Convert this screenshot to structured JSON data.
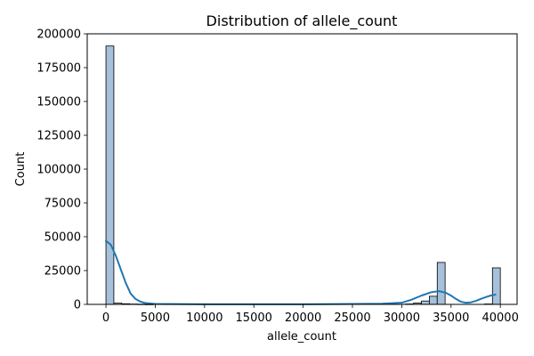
{
  "chart_data": {
    "type": "histogram",
    "title": "Distribution of allele_count",
    "xlabel": "allele_count",
    "ylabel": "Count",
    "xlim": [
      -1900,
      41700
    ],
    "ylim": [
      0,
      200000
    ],
    "x_ticks": [
      0,
      5000,
      10000,
      15000,
      20000,
      25000,
      30000,
      35000,
      40000
    ],
    "y_ticks": [
      0,
      25000,
      50000,
      75000,
      100000,
      125000,
      150000,
      175000,
      200000
    ],
    "grid": false,
    "bin_width": 800,
    "bins": [
      {
        "x0": 0,
        "x1": 800,
        "count": 191000
      },
      {
        "x0": 800,
        "x1": 1600,
        "count": 900
      },
      {
        "x0": 1600,
        "x1": 2400,
        "count": 450
      },
      {
        "x0": 2400,
        "x1": 3200,
        "count": 250
      },
      {
        "x0": 3200,
        "x1": 4000,
        "count": 150
      },
      {
        "x0": 4000,
        "x1": 4800,
        "count": 80
      },
      {
        "x0": 30400,
        "x1": 31200,
        "count": 300
      },
      {
        "x0": 31200,
        "x1": 32000,
        "count": 1000
      },
      {
        "x0": 32000,
        "x1": 32800,
        "count": 2500
      },
      {
        "x0": 32800,
        "x1": 33600,
        "count": 6000
      },
      {
        "x0": 33600,
        "x1": 34400,
        "count": 31000
      },
      {
        "x0": 38400,
        "x1": 39200,
        "count": 300
      },
      {
        "x0": 39200,
        "x1": 40000,
        "count": 27000
      }
    ],
    "kde": {
      "x": [
        0,
        500,
        1000,
        1500,
        2000,
        2500,
        3000,
        3500,
        4000,
        5000,
        10000,
        20000,
        28000,
        30000,
        31000,
        32000,
        33000,
        33800,
        34500,
        35000,
        35500,
        36000,
        36500,
        37000,
        37500,
        38000,
        38500,
        39000,
        39500
      ],
      "y": [
        47000,
        44000,
        36000,
        26000,
        16000,
        8000,
        4000,
        2000,
        1000,
        300,
        100,
        100,
        500,
        1200,
        3500,
        6500,
        9000,
        9800,
        8500,
        6500,
        4000,
        2000,
        1200,
        1500,
        2500,
        4000,
        5300,
        6500,
        7200
      ]
    },
    "colors": {
      "bar_fill": "#a6c1d9",
      "bar_edge": "#000000",
      "line": "#1f77b4"
    }
  }
}
